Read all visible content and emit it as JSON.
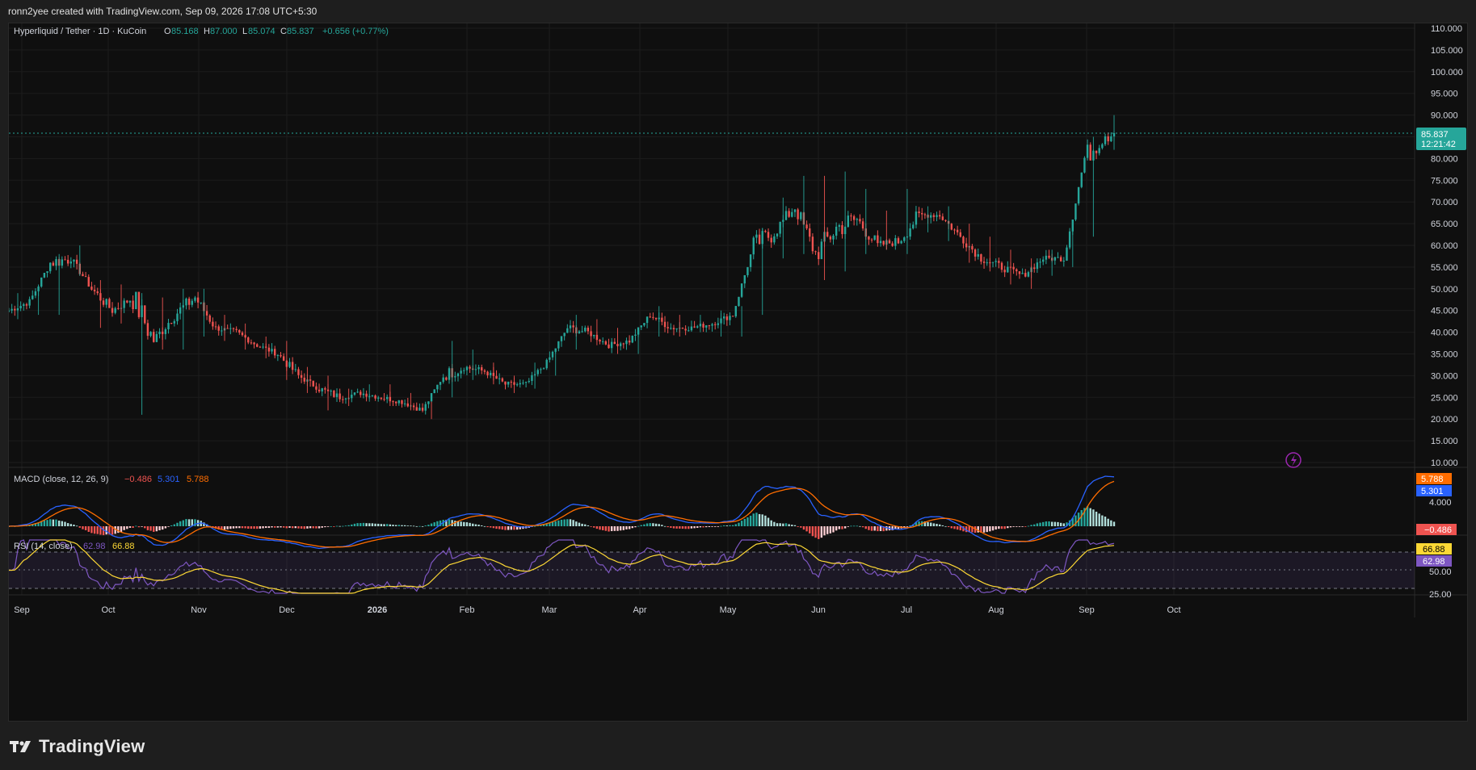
{
  "header": {
    "caption": "ronn2yee created with TradingView.com, Sep 09, 2026 17:08 UTC+5:30"
  },
  "legend": {
    "symbol": "Hyperliquid / Tether · 1D · KuCoin",
    "o_label": "O",
    "o_value": "85.168",
    "h_label": "H",
    "h_value": "87.000",
    "l_label": "L",
    "l_value": "85.074",
    "c_label": "C",
    "c_value": "85.837",
    "change": "+0.656 (+0.77%)"
  },
  "price_axis": {
    "labels": [
      "110.000",
      "105.000",
      "100.000",
      "95.000",
      "90.000",
      "85.000",
      "80.000",
      "75.000",
      "70.000",
      "65.000",
      "60.000",
      "55.000",
      "50.000",
      "45.000",
      "40.000",
      "35.000",
      "30.000",
      "25.000",
      "20.000",
      "15.000",
      "10.000"
    ],
    "current_price": "85.837",
    "countdown": "12:21:42"
  },
  "macd": {
    "label": "MACD (close, 12, 26, 9)",
    "hist_value": "−0.486",
    "macd_value": "5.301",
    "signal_value": "5.788",
    "axis_label": "4.000"
  },
  "rsi": {
    "label": "RSI (14, close)",
    "rsi_value": "62.98",
    "ma_value": "66.88",
    "axis_labels": [
      "50.00",
      "25.00"
    ]
  },
  "time_axis": {
    "labels": [
      "Sep",
      "Oct",
      "Nov",
      "Dec",
      "2026",
      "Feb",
      "Mar",
      "Apr",
      "May",
      "Jun",
      "Jul",
      "Aug",
      "Sep",
      "Oct"
    ]
  },
  "colors": {
    "up": "#26a69a",
    "down": "#ef5350",
    "macd_line": "#2962ff",
    "signal_line": "#ff6d00",
    "rsi_line": "#7e57c2",
    "rsi_ma": "#fdd835",
    "price_tag": "#26a69a"
  },
  "brand": {
    "name": "TradingView"
  },
  "chart_data": {
    "type": "candlestick",
    "title": "Hyperliquid / Tether · 1D · KuCoin",
    "y_range": [
      10,
      110
    ],
    "x": [
      "Aug 31",
      "Sep 7",
      "Sep 14",
      "Sep 21",
      "Sep 28",
      "Oct 5",
      "Oct 12",
      "Oct 19",
      "Oct 26",
      "Nov 2",
      "Nov 9",
      "Nov 16",
      "Nov 23",
      "Nov 30",
      "Dec 7",
      "Dec 14",
      "Dec 21",
      "Dec 28",
      "Jan 4",
      "Jan 11",
      "Jan 18",
      "Jan 25",
      "Feb 1",
      "Feb 8",
      "Feb 15",
      "Feb 22",
      "Mar 1",
      "Mar 8",
      "Mar 15",
      "Mar 22",
      "Mar 29",
      "Apr 5",
      "Apr 12",
      "Apr 19",
      "Apr 26",
      "May 3",
      "May 10",
      "May 17",
      "May 24",
      "May 31",
      "Jun 7",
      "Jun 14",
      "Jun 21",
      "Jun 28",
      "Jul 5",
      "Jul 12",
      "Jul 19",
      "Jul 26",
      "Aug 2",
      "Aug 9",
      "Aug 16",
      "Aug 23",
      "Aug 30",
      "Sep 6"
    ],
    "close": [
      45,
      47,
      56,
      57,
      50,
      45,
      48,
      38,
      44,
      48,
      41,
      40,
      37,
      35,
      30,
      27,
      25,
      26,
      25,
      24,
      22,
      30,
      32,
      31,
      28,
      28,
      33,
      41,
      40,
      37,
      38,
      44,
      41,
      41,
      42,
      44,
      60,
      63,
      69,
      58,
      64,
      66,
      60,
      61,
      67,
      67,
      62,
      57,
      55,
      53,
      57,
      57,
      80,
      86
    ],
    "high": [
      49,
      51,
      58,
      60,
      52,
      51,
      49,
      48,
      50,
      50,
      44,
      42,
      39,
      38,
      32,
      30,
      27,
      28,
      28,
      26,
      24,
      38,
      36,
      33,
      30,
      33,
      36,
      44,
      43,
      41,
      41,
      46,
      44,
      44,
      45,
      46,
      64,
      71,
      76,
      76,
      77,
      73,
      68,
      73,
      69,
      69,
      65,
      62,
      59,
      57,
      59,
      64,
      85,
      90
    ],
    "low": [
      43,
      44,
      44,
      53,
      41,
      42,
      21,
      36,
      36,
      39,
      38,
      36,
      34,
      29,
      26,
      22,
      23,
      24,
      23,
      22,
      20,
      25,
      29,
      28,
      26,
      27,
      30,
      36,
      37,
      35,
      35,
      39,
      39,
      40,
      39,
      39,
      44,
      57,
      58,
      52,
      54,
      58,
      59,
      58,
      63,
      61,
      56,
      54,
      51,
      50,
      53,
      55,
      62,
      82
    ],
    "macd": {
      "last": -0.486,
      "macd_last": 5.301,
      "signal_last": 5.788
    },
    "rsi": {
      "last": 62.98,
      "ma_last": 66.88
    }
  }
}
